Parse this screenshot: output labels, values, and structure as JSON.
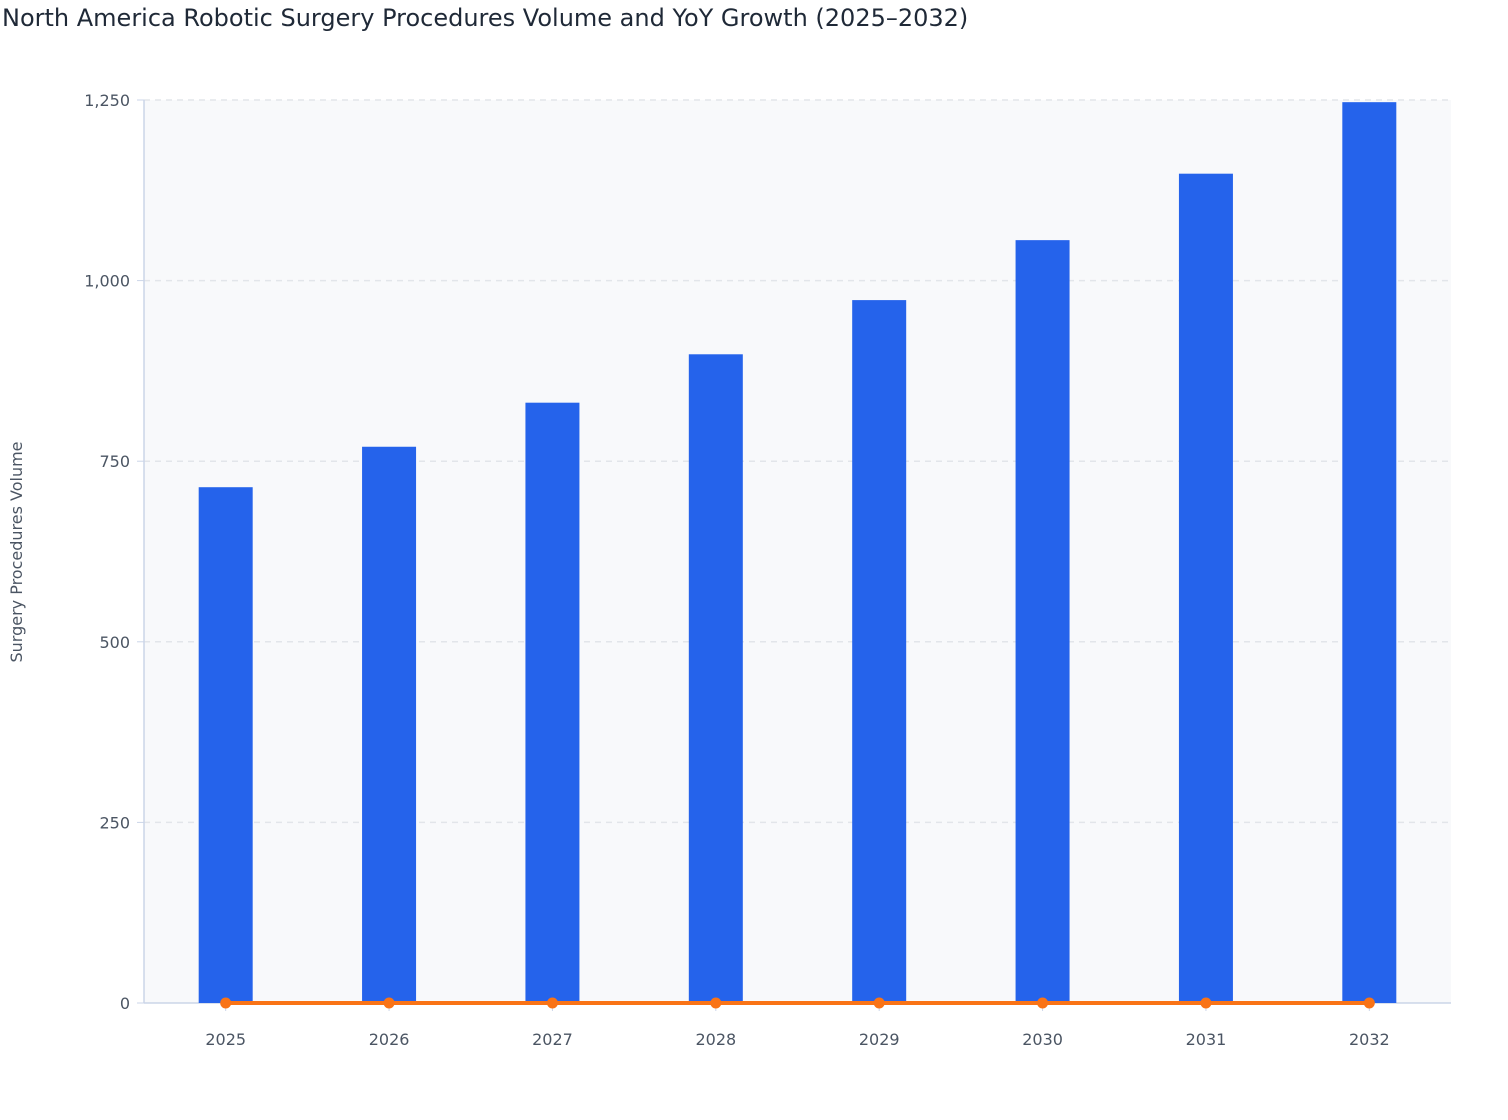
{
  "chart_data": {
    "type": "bar",
    "title": "North America Robotic Surgery Procedures Volume and YoY Growth (2025–2032)",
    "xlabel": "",
    "ylabel": "Surgery Procedures Volume",
    "categories": [
      "2025",
      "2026",
      "2027",
      "2028",
      "2029",
      "2030",
      "2031",
      "2032"
    ],
    "series": [
      {
        "type": "bar",
        "values": [
          714,
          770,
          831,
          898,
          973,
          1056,
          1148,
          1247
        ],
        "color": "#2563eb"
      },
      {
        "type": "line",
        "values": [
          0,
          0,
          0,
          0,
          0,
          0,
          0,
          0
        ],
        "color": "#f97316"
      }
    ],
    "ylim": [
      0,
      1250
    ],
    "yticks": [
      0,
      250,
      500,
      750,
      1000,
      1250
    ],
    "ytick_labels": [
      "0",
      "250",
      "500",
      "750",
      "1,000",
      "1,250"
    ],
    "grid": true,
    "plot_background": "#f8f9fb"
  }
}
